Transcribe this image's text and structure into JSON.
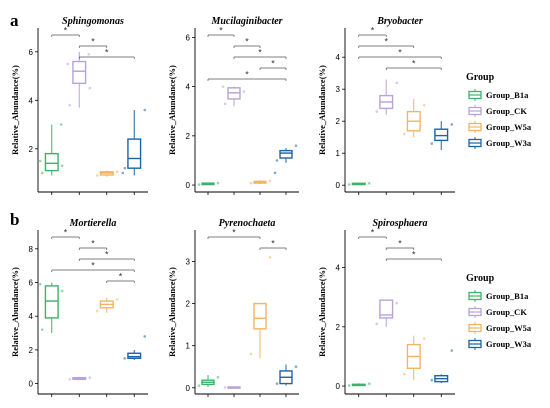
{
  "figure": {
    "panel_a_label": "a",
    "panel_b_label": "b"
  },
  "legend": {
    "title": "Group",
    "entries": [
      {
        "name": "Group_B1a",
        "color": "#3cb36c"
      },
      {
        "name": "Group_CK",
        "color": "#b7a3d6"
      },
      {
        "name": "Group_W5a",
        "color": "#f3b463"
      },
      {
        "name": "Group_W3a",
        "color": "#1c64a4"
      }
    ]
  },
  "chart_data": [
    {
      "type": "box",
      "title": "Sphingomonas",
      "ylabel": "Relative_Abundance(%)",
      "groups": [
        "Group_B1a",
        "Group_CK",
        "Group_W5a",
        "Group_W3a"
      ],
      "ylim": [
        0.3,
        6.9
      ],
      "yticks": [
        2,
        4,
        6
      ],
      "boxes": [
        {
          "min": 0.9,
          "q1": 1.1,
          "median": 1.4,
          "q3": 1.8,
          "max": 3.0,
          "points": [
            1.0,
            1.3,
            1.5,
            3.0
          ]
        },
        {
          "min": 3.7,
          "q1": 4.7,
          "median": 5.2,
          "q3": 5.6,
          "max": 6.0,
          "points": [
            3.8,
            4.5,
            5.5,
            5.9
          ]
        },
        {
          "min": 0.85,
          "q1": 0.92,
          "median": 1.0,
          "q3": 1.05,
          "max": 1.1,
          "points": [
            0.9,
            1.05
          ]
        },
        {
          "min": 0.9,
          "q1": 1.2,
          "median": 1.6,
          "q3": 2.4,
          "max": 3.6,
          "points": [
            1.2,
            3.6,
            1.0
          ]
        }
      ],
      "significance": [
        {
          "from": 0,
          "to": 1,
          "label": "*"
        },
        {
          "from": 1,
          "to": 2,
          "label": "*"
        },
        {
          "from": 1,
          "to": 3,
          "label": "*"
        }
      ]
    },
    {
      "type": "box",
      "title": "Mucilaginibacter",
      "ylabel": "Relative_Abundance(%)",
      "groups": [
        "Group_B1a",
        "Group_CK",
        "Group_W5a",
        "Group_W3a"
      ],
      "ylim": [
        -0.2,
        6.3
      ],
      "yticks": [
        0,
        2,
        4,
        6
      ],
      "boxes": [
        {
          "min": 0.0,
          "q1": 0.02,
          "median": 0.05,
          "q3": 0.08,
          "max": 0.1,
          "points": [
            0.02,
            0.08
          ]
        },
        {
          "min": 3.2,
          "q1": 3.5,
          "median": 3.75,
          "q3": 3.95,
          "max": 4.0,
          "points": [
            3.3,
            3.8,
            4.0
          ]
        },
        {
          "min": 0.05,
          "q1": 0.08,
          "median": 0.12,
          "q3": 0.15,
          "max": 0.2,
          "points": [
            0.08,
            0.18
          ]
        },
        {
          "min": 0.9,
          "q1": 1.1,
          "median": 1.3,
          "q3": 1.4,
          "max": 1.5,
          "points": [
            1.0,
            1.6,
            0.5
          ]
        }
      ],
      "significance": [
        {
          "from": 0,
          "to": 1,
          "label": "*"
        },
        {
          "from": 1,
          "to": 2,
          "label": "*"
        },
        {
          "from": 1,
          "to": 3,
          "label": "*"
        },
        {
          "from": 2,
          "to": 3,
          "label": "*"
        },
        {
          "from": 0,
          "to": 3,
          "label": "*"
        }
      ]
    },
    {
      "type": "box",
      "title": "Bryobacter",
      "ylabel": "Relative_Abundance(%)",
      "groups": [
        "Group_B1a",
        "Group_CK",
        "Group_W5a",
        "Group_W3a"
      ],
      "ylim": [
        -0.15,
        4.85
      ],
      "yticks": [
        0,
        1,
        2,
        3,
        4
      ],
      "boxes": [
        {
          "min": 0.0,
          "q1": 0.02,
          "median": 0.04,
          "q3": 0.06,
          "max": 0.08,
          "points": [
            0.02,
            0.06
          ]
        },
        {
          "min": 2.2,
          "q1": 2.4,
          "median": 2.6,
          "q3": 2.8,
          "max": 3.3,
          "points": [
            2.3,
            3.2
          ]
        },
        {
          "min": 1.5,
          "q1": 1.7,
          "median": 2.0,
          "q3": 2.3,
          "max": 2.7,
          "points": [
            1.6,
            2.5
          ]
        },
        {
          "min": 1.1,
          "q1": 1.4,
          "median": 1.55,
          "q3": 1.75,
          "max": 2.0,
          "points": [
            1.3,
            1.9
          ]
        }
      ],
      "significance": [
        {
          "from": 0,
          "to": 1,
          "label": "*"
        },
        {
          "from": 0,
          "to": 2,
          "label": "*"
        },
        {
          "from": 0,
          "to": 3,
          "label": "*"
        },
        {
          "from": 1,
          "to": 3,
          "label": "*"
        }
      ]
    },
    {
      "type": "box",
      "title": "Mortierella",
      "ylabel": "Relative_Abundance(%)",
      "groups": [
        "Group_B1a",
        "Group_CK",
        "Group_W5a",
        "Group_W3a"
      ],
      "ylim": [
        -0.5,
        9.0
      ],
      "yticks": [
        0,
        2,
        4,
        6,
        8
      ],
      "boxes": [
        {
          "min": 3.0,
          "q1": 3.9,
          "median": 4.9,
          "q3": 5.8,
          "max": 6.0,
          "points": [
            3.2,
            5.5,
            5.9
          ]
        },
        {
          "min": 0.2,
          "q1": 0.25,
          "median": 0.3,
          "q3": 0.35,
          "max": 0.4,
          "points": [
            0.25,
            0.35
          ]
        },
        {
          "min": 4.2,
          "q1": 4.5,
          "median": 4.7,
          "q3": 4.9,
          "max": 5.1,
          "points": [
            4.3,
            5.0
          ]
        },
        {
          "min": 1.4,
          "q1": 1.5,
          "median": 1.6,
          "q3": 1.8,
          "max": 2.0,
          "points": [
            1.5,
            2.8
          ]
        }
      ],
      "significance": [
        {
          "from": 0,
          "to": 1,
          "label": "*"
        },
        {
          "from": 1,
          "to": 2,
          "label": "*"
        },
        {
          "from": 1,
          "to": 3,
          "label": "*"
        },
        {
          "from": 0,
          "to": 3,
          "label": "*"
        },
        {
          "from": 2,
          "to": 3,
          "label": "*"
        }
      ]
    },
    {
      "type": "box",
      "title": "Pyrenochaeta",
      "ylabel": "Relative_Abundance(%)",
      "groups": [
        "Group_B1a",
        "Group_CK",
        "Group_W5a",
        "Group_W3a"
      ],
      "ylim": [
        -0.1,
        3.7
      ],
      "yticks": [
        0,
        1,
        2,
        3
      ],
      "boxes": [
        {
          "min": 0.02,
          "q1": 0.08,
          "median": 0.13,
          "q3": 0.18,
          "max": 0.3,
          "points": [
            0.05,
            0.25
          ]
        },
        {
          "min": 0.0,
          "q1": 0.0,
          "median": 0.01,
          "q3": 0.02,
          "max": 0.03,
          "points": [
            0.01
          ]
        },
        {
          "min": 0.7,
          "q1": 1.4,
          "median": 1.65,
          "q3": 2.0,
          "max": 2.0,
          "points": [
            0.8,
            3.1
          ]
        },
        {
          "min": 0.05,
          "q1": 0.1,
          "median": 0.25,
          "q3": 0.4,
          "max": 0.55,
          "points": [
            0.1,
            0.5
          ]
        }
      ],
      "significance": [
        {
          "from": 0,
          "to": 2,
          "label": "*"
        },
        {
          "from": 2,
          "to": 3,
          "label": "*"
        }
      ]
    },
    {
      "type": "box",
      "title": "Spirosphaera",
      "ylabel": "Relative_Abundance(%)",
      "groups": [
        "Group_B1a",
        "Group_CK",
        "Group_W5a",
        "Group_W3a"
      ],
      "ylim": [
        -0.2,
        5.2
      ],
      "yticks": [
        0,
        2,
        4
      ],
      "boxes": [
        {
          "min": 0.0,
          "q1": 0.02,
          "median": 0.04,
          "q3": 0.06,
          "max": 0.1,
          "points": [
            0.02,
            0.08
          ]
        },
        {
          "min": 2.0,
          "q1": 2.3,
          "median": 2.4,
          "q3": 2.9,
          "max": 2.9,
          "points": [
            2.1,
            2.8
          ]
        },
        {
          "min": 0.2,
          "q1": 0.6,
          "median": 1.0,
          "q3": 1.4,
          "max": 1.7,
          "points": [
            0.4,
            1.6
          ]
        },
        {
          "min": 0.1,
          "q1": 0.15,
          "median": 0.25,
          "q3": 0.35,
          "max": 0.4,
          "points": [
            0.2,
            1.2
          ]
        }
      ],
      "significance": [
        {
          "from": 0,
          "to": 1,
          "label": "*"
        },
        {
          "from": 1,
          "to": 2,
          "label": "*"
        },
        {
          "from": 1,
          "to": 3,
          "label": "*"
        }
      ]
    }
  ]
}
